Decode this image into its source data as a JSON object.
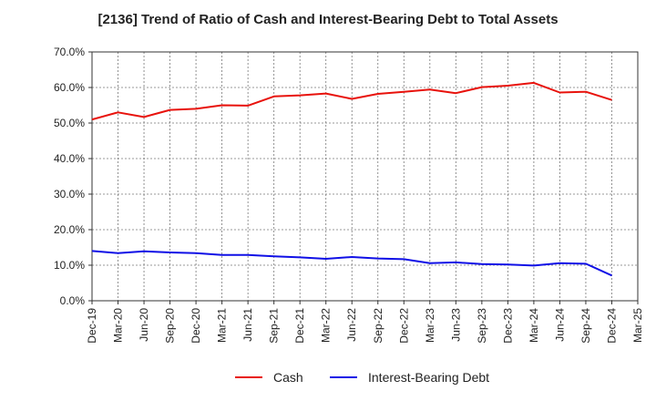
{
  "chart_data": {
    "type": "line",
    "title": "[2136]  Trend of Ratio of Cash and Interest-Bearing Debt to Total Assets",
    "xlabel": "",
    "ylabel": "",
    "ylim": [
      0,
      70
    ],
    "yticks": [
      "0.0%",
      "10.0%",
      "20.0%",
      "30.0%",
      "40.0%",
      "50.0%",
      "60.0%",
      "70.0%"
    ],
    "categories": [
      "Dec-19",
      "Mar-20",
      "Jun-20",
      "Sep-20",
      "Dec-20",
      "Mar-21",
      "Jun-21",
      "Sep-21",
      "Dec-21",
      "Mar-22",
      "Jun-22",
      "Sep-22",
      "Dec-22",
      "Mar-23",
      "Jun-23",
      "Sep-23",
      "Dec-23",
      "Mar-24",
      "Jun-24",
      "Sep-24",
      "Dec-24",
      "Mar-25"
    ],
    "grid": true,
    "legend_position": "bottom",
    "series": [
      {
        "name": "Cash",
        "color": "#e8120c",
        "values": [
          51.0,
          53.0,
          51.7,
          53.7,
          54.0,
          55.0,
          54.9,
          57.5,
          57.8,
          58.3,
          56.8,
          58.2,
          58.8,
          59.4,
          58.4,
          60.1,
          60.5,
          61.3,
          58.6,
          58.8,
          56.5,
          null
        ]
      },
      {
        "name": "Interest-Bearing Debt",
        "color": "#1010e6",
        "values": [
          14.0,
          13.4,
          13.9,
          13.6,
          13.4,
          12.9,
          12.9,
          12.5,
          12.2,
          11.8,
          12.3,
          11.9,
          11.7,
          10.6,
          10.8,
          10.3,
          10.2,
          9.9,
          10.6,
          10.4,
          7.1,
          null
        ]
      }
    ]
  }
}
